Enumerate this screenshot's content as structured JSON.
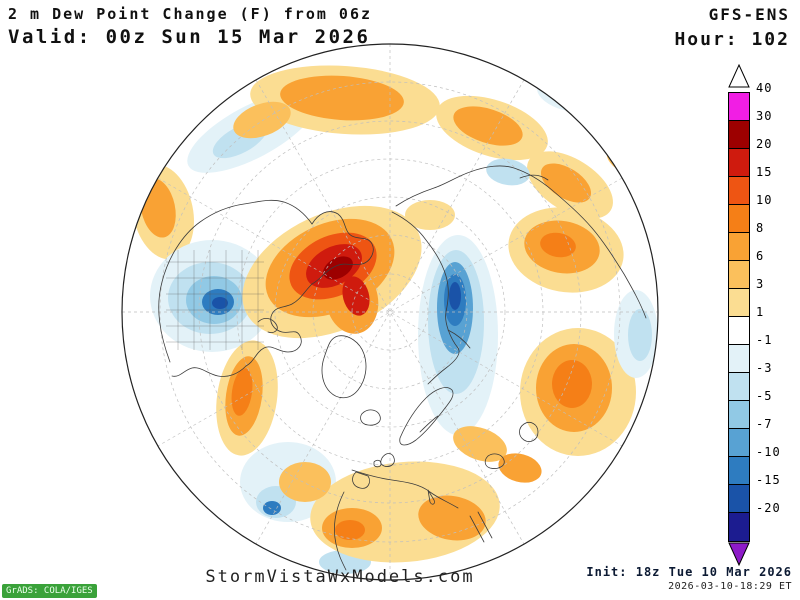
{
  "header": {
    "title": "2 m Dew Point Change (F) from 06z",
    "valid": "Valid: 00z Sun 15 Mar 2026",
    "model": "GFS-ENS",
    "hour": "Hour: 102"
  },
  "colorbar": {
    "labels": [
      "40",
      "30",
      "20",
      "15",
      "10",
      "8",
      "6",
      "3",
      "1",
      "-1",
      "-3",
      "-5",
      "-7",
      "-10",
      "-15",
      "-20"
    ],
    "segments": [
      "#f11ee4",
      "#9d0000",
      "#cf1b0e",
      "#ee5513",
      "#f57f17",
      "#f9a234",
      "#fbc05c",
      "#fbdd92",
      "#ffffff",
      "#e3f2f8",
      "#c0e1f0",
      "#91c9e5",
      "#58a2d3",
      "#2e7cc0",
      "#1a53a8",
      "#1c1c90"
    ],
    "arrow_top": "#ffffff",
    "arrow_bottom": "#8d1bc8"
  },
  "footer": {
    "watermark": "StormVistaWxModels.com",
    "init": "Init: 18z Tue 10 Mar 2026",
    "generated": "2026-03-10-18:29 ET",
    "credit": "GrADS: COLA/IGES"
  }
}
